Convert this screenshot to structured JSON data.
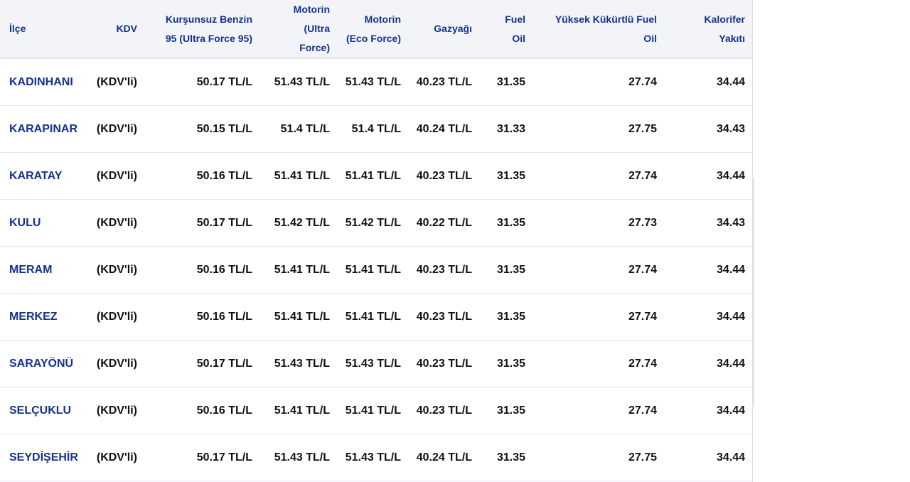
{
  "columns": [
    "İlçe",
    "KDV",
    "Kurşunsuz Benzin 95 (Ultra Force 95)",
    "Motorin (Ultra Force)",
    "Motorin (Eco Force)",
    "Gazyağı",
    "Fuel Oil",
    "Yüksek Kükürtlü Fuel Oil",
    "Kalorifer Yakıtı"
  ],
  "rows": [
    [
      "KADINHANI",
      "(KDV'li)",
      "50.17 TL/L",
      "51.43 TL/L",
      "51.43 TL/L",
      "40.23 TL/L",
      "31.35",
      "27.74",
      "34.44"
    ],
    [
      "KARAPINAR",
      "(KDV'li)",
      "50.15 TL/L",
      "51.4 TL/L",
      "51.4 TL/L",
      "40.24 TL/L",
      "31.33",
      "27.75",
      "34.43"
    ],
    [
      "KARATAY",
      "(KDV'li)",
      "50.16 TL/L",
      "51.41 TL/L",
      "51.41 TL/L",
      "40.23 TL/L",
      "31.35",
      "27.74",
      "34.44"
    ],
    [
      "KULU",
      "(KDV'li)",
      "50.17 TL/L",
      "51.42 TL/L",
      "51.42 TL/L",
      "40.22 TL/L",
      "31.35",
      "27.73",
      "34.43"
    ],
    [
      "MERAM",
      "(KDV'li)",
      "50.16 TL/L",
      "51.41 TL/L",
      "51.41 TL/L",
      "40.23 TL/L",
      "31.35",
      "27.74",
      "34.44"
    ],
    [
      "MERKEZ",
      "(KDV'li)",
      "50.16 TL/L",
      "51.41 TL/L",
      "51.41 TL/L",
      "40.23 TL/L",
      "31.35",
      "27.74",
      "34.44"
    ],
    [
      "SARAYÖNÜ",
      "(KDV'li)",
      "50.17 TL/L",
      "51.43 TL/L",
      "51.43 TL/L",
      "40.23 TL/L",
      "31.35",
      "27.74",
      "34.44"
    ],
    [
      "SELÇUKLU",
      "(KDV'li)",
      "50.16 TL/L",
      "51.41 TL/L",
      "51.41 TL/L",
      "40.23 TL/L",
      "31.35",
      "27.74",
      "34.44"
    ],
    [
      "SEYDİŞEHİR",
      "(KDV'li)",
      "50.17 TL/L",
      "51.43 TL/L",
      "51.43 TL/L",
      "40.24 TL/L",
      "31.35",
      "27.75",
      "34.44"
    ]
  ]
}
